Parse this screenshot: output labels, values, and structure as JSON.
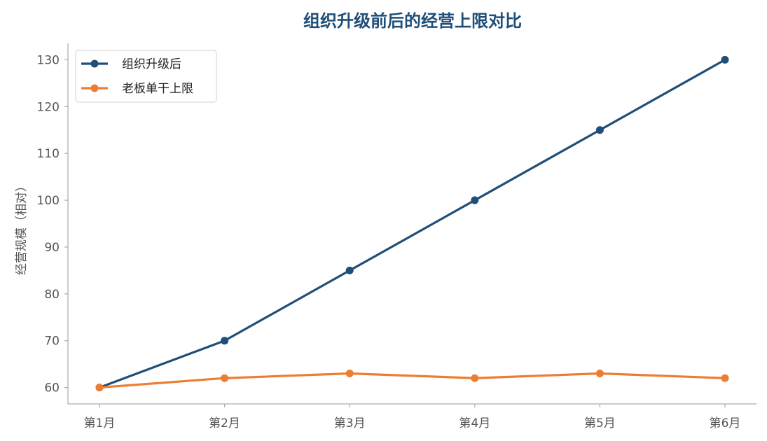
{
  "chart_data": {
    "type": "line",
    "title": "组织升级前后的经营上限对比",
    "xlabel": "",
    "ylabel": "经营规模（相对）",
    "categories": [
      "第1月",
      "第2月",
      "第3月",
      "第4月",
      "第5月",
      "第6月"
    ],
    "ylim": [
      56.5,
      133.5
    ],
    "yticks": [
      60,
      70,
      80,
      90,
      100,
      110,
      120,
      130
    ],
    "grid": false,
    "legend_position": "top-left",
    "series": [
      {
        "name": "组织升级后",
        "color": "#1f4e79",
        "values": [
          60,
          70,
          85,
          100,
          115,
          130
        ]
      },
      {
        "name": "老板单干上限",
        "color": "#ed7d31",
        "values": [
          60,
          62,
          63,
          62,
          63,
          62
        ]
      }
    ]
  },
  "colors": {
    "title": "#1f4e79",
    "axis": "#aaaaaa",
    "tick_text": "#555555"
  }
}
